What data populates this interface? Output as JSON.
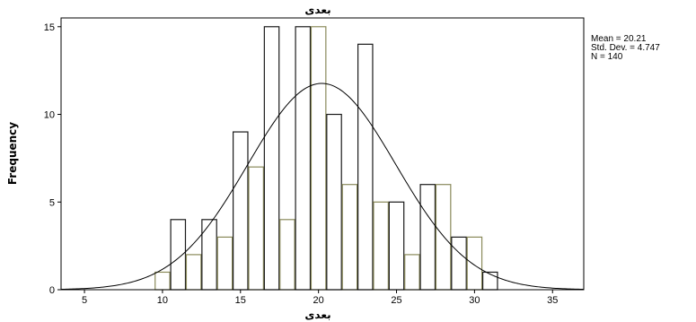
{
  "chart_data": {
    "type": "bar",
    "title": "بعدی",
    "xlabel": "بعدی",
    "ylabel": "Frequency",
    "xlim": [
      3.5,
      37
    ],
    "ylim": [
      0,
      15.5
    ],
    "xticks": [
      5,
      10,
      15,
      20,
      25,
      30,
      35
    ],
    "yticks": [
      0,
      5,
      10,
      15
    ],
    "bin_width": 1,
    "bars": [
      {
        "x": 10,
        "value": 1
      },
      {
        "x": 11,
        "value": 4
      },
      {
        "x": 12,
        "value": 2
      },
      {
        "x": 13,
        "value": 4
      },
      {
        "x": 14,
        "value": 3
      },
      {
        "x": 15,
        "value": 9
      },
      {
        "x": 16,
        "value": 7
      },
      {
        "x": 17,
        "value": 15
      },
      {
        "x": 18,
        "value": 4
      },
      {
        "x": 19,
        "value": 15
      },
      {
        "x": 20,
        "value": 15
      },
      {
        "x": 21,
        "value": 10
      },
      {
        "x": 22,
        "value": 6
      },
      {
        "x": 23,
        "value": 14
      },
      {
        "x": 24,
        "value": 5
      },
      {
        "x": 25,
        "value": 5
      },
      {
        "x": 26,
        "value": 2
      },
      {
        "x": 27,
        "value": 6
      },
      {
        "x": 28,
        "value": 6
      },
      {
        "x": 29,
        "value": 3
      },
      {
        "x": 30,
        "value": 3
      },
      {
        "x": 31,
        "value": 1
      }
    ],
    "normal_curve": {
      "mean": 20.21,
      "sd": 4.747,
      "n": 140
    },
    "stats": [
      "Mean = 20.21",
      "Std. Dev. = 4.747",
      "N = 140"
    ],
    "grid": false,
    "colors": {
      "bar_edge_odd": "#1a1a1a",
      "bar_edge_even": "#8a8a5a",
      "curve": "#000000",
      "axis": "#000000"
    }
  }
}
